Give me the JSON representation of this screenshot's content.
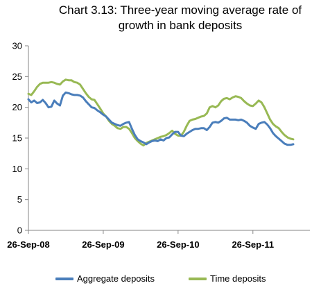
{
  "title": {
    "line1": "Chart  3.13:  Three-year moving average rate of",
    "line2": "growth in bank deposits"
  },
  "colors": {
    "aggregate": "#4a7ebb",
    "time": "#98b954",
    "axis": "#868686"
  },
  "chart_data": {
    "type": "line",
    "title": "Chart 3.13: Three-year moving average rate of growth in bank deposits",
    "xlabel": "",
    "ylabel": "",
    "ylim": [
      0,
      30
    ],
    "yticks": [
      "0",
      "5",
      "10",
      "15",
      "20",
      "25",
      "30"
    ],
    "xticks": [
      "26-Sep-08",
      "26-Sep-09",
      "26-Sep-10",
      "26-Sep-11"
    ],
    "grid": false,
    "legend": "bottom",
    "x_start": "2008-09-26",
    "x_end": "2012-06-30",
    "series": [
      {
        "name": "Aggregate deposits",
        "color": "#4a7ebb",
        "points": [
          [
            "2008-09-26",
            21.3
          ],
          [
            "2008-10-10",
            20.8
          ],
          [
            "2008-10-24",
            21.1
          ],
          [
            "2008-11-07",
            20.7
          ],
          [
            "2008-11-21",
            20.8
          ],
          [
            "2008-12-05",
            21.2
          ],
          [
            "2008-12-19",
            20.7
          ],
          [
            "2009-01-02",
            20.0
          ],
          [
            "2009-01-16",
            20.1
          ],
          [
            "2009-01-30",
            21.1
          ],
          [
            "2009-02-13",
            20.6
          ],
          [
            "2009-02-27",
            20.3
          ],
          [
            "2009-03-13",
            21.9
          ],
          [
            "2009-03-27",
            22.4
          ],
          [
            "2009-04-10",
            22.3
          ],
          [
            "2009-04-24",
            22.1
          ],
          [
            "2009-05-08",
            22.0
          ],
          [
            "2009-05-22",
            22.0
          ],
          [
            "2009-06-05",
            21.9
          ],
          [
            "2009-06-19",
            21.6
          ],
          [
            "2009-07-03",
            21.0
          ],
          [
            "2009-07-17",
            20.5
          ],
          [
            "2009-07-31",
            20.0
          ],
          [
            "2009-08-14",
            19.9
          ],
          [
            "2009-08-28",
            19.5
          ],
          [
            "2009-09-11",
            19.2
          ],
          [
            "2009-09-26",
            18.8
          ],
          [
            "2009-10-10",
            18.5
          ],
          [
            "2009-10-24",
            18.0
          ],
          [
            "2009-11-07",
            17.5
          ],
          [
            "2009-11-21",
            17.3
          ],
          [
            "2009-12-05",
            17.1
          ],
          [
            "2009-12-19",
            17.0
          ],
          [
            "2010-01-02",
            17.3
          ],
          [
            "2010-01-16",
            17.5
          ],
          [
            "2010-01-30",
            17.6
          ],
          [
            "2010-02-13",
            16.5
          ],
          [
            "2010-02-27",
            15.5
          ],
          [
            "2010-03-13",
            14.8
          ],
          [
            "2010-03-27",
            14.5
          ],
          [
            "2010-04-10",
            14.3
          ],
          [
            "2010-04-24",
            14.0
          ],
          [
            "2010-05-08",
            14.3
          ],
          [
            "2010-05-22",
            14.5
          ],
          [
            "2010-06-05",
            14.6
          ],
          [
            "2010-06-19",
            14.5
          ],
          [
            "2010-07-03",
            14.8
          ],
          [
            "2010-07-17",
            14.6
          ],
          [
            "2010-07-31",
            15.0
          ],
          [
            "2010-08-14",
            15.1
          ],
          [
            "2010-08-28",
            15.6
          ],
          [
            "2010-09-11",
            16.0
          ],
          [
            "2010-09-26",
            16.0
          ],
          [
            "2010-10-10",
            15.4
          ],
          [
            "2010-10-24",
            15.3
          ],
          [
            "2010-11-07",
            15.7
          ],
          [
            "2010-11-21",
            16.0
          ],
          [
            "2010-12-05",
            16.3
          ],
          [
            "2010-12-19",
            16.5
          ],
          [
            "2011-01-02",
            16.5
          ],
          [
            "2011-01-16",
            16.6
          ],
          [
            "2011-01-30",
            16.6
          ],
          [
            "2011-02-13",
            16.3
          ],
          [
            "2011-02-27",
            16.8
          ],
          [
            "2011-03-13",
            17.5
          ],
          [
            "2011-03-27",
            17.6
          ],
          [
            "2011-04-10",
            17.5
          ],
          [
            "2011-04-24",
            17.8
          ],
          [
            "2011-05-08",
            18.2
          ],
          [
            "2011-05-22",
            18.3
          ],
          [
            "2011-06-05",
            18.0
          ],
          [
            "2011-06-19",
            18.0
          ],
          [
            "2011-07-03",
            18.0
          ],
          [
            "2011-07-17",
            17.9
          ],
          [
            "2011-07-31",
            18.0
          ],
          [
            "2011-08-14",
            17.8
          ],
          [
            "2011-08-28",
            17.5
          ],
          [
            "2011-09-11",
            17.0
          ],
          [
            "2011-09-26",
            16.7
          ],
          [
            "2011-10-10",
            16.5
          ],
          [
            "2011-10-24",
            17.3
          ],
          [
            "2011-11-07",
            17.5
          ],
          [
            "2011-11-21",
            17.6
          ],
          [
            "2011-12-05",
            17.2
          ],
          [
            "2011-12-19",
            16.6
          ],
          [
            "2012-01-02",
            15.8
          ],
          [
            "2012-01-16",
            15.3
          ],
          [
            "2012-01-30",
            14.9
          ],
          [
            "2012-02-13",
            14.5
          ],
          [
            "2012-02-27",
            14.1
          ],
          [
            "2012-03-13",
            13.9
          ],
          [
            "2012-03-27",
            13.9
          ],
          [
            "2012-04-10",
            14.0
          ]
        ]
      },
      {
        "name": "Time deposits",
        "color": "#98b954",
        "points": [
          [
            "2008-09-26",
            22.2
          ],
          [
            "2008-10-10",
            22.0
          ],
          [
            "2008-10-24",
            22.6
          ],
          [
            "2008-11-07",
            23.3
          ],
          [
            "2008-11-21",
            23.8
          ],
          [
            "2008-12-05",
            24.0
          ],
          [
            "2008-12-19",
            24.0
          ],
          [
            "2009-01-02",
            24.0
          ],
          [
            "2009-01-16",
            24.1
          ],
          [
            "2009-01-30",
            24.0
          ],
          [
            "2009-02-13",
            23.8
          ],
          [
            "2009-02-27",
            23.7
          ],
          [
            "2009-03-13",
            24.2
          ],
          [
            "2009-03-27",
            24.5
          ],
          [
            "2009-04-10",
            24.4
          ],
          [
            "2009-04-24",
            24.4
          ],
          [
            "2009-05-08",
            24.1
          ],
          [
            "2009-05-22",
            24.0
          ],
          [
            "2009-06-05",
            23.7
          ],
          [
            "2009-06-19",
            23.0
          ],
          [
            "2009-07-03",
            22.3
          ],
          [
            "2009-07-17",
            21.7
          ],
          [
            "2009-07-31",
            21.3
          ],
          [
            "2009-08-14",
            21.2
          ],
          [
            "2009-08-28",
            20.5
          ],
          [
            "2009-09-11",
            19.8
          ],
          [
            "2009-09-26",
            19.0
          ],
          [
            "2009-10-10",
            18.5
          ],
          [
            "2009-10-24",
            17.8
          ],
          [
            "2009-11-07",
            17.3
          ],
          [
            "2009-11-21",
            17.0
          ],
          [
            "2009-12-05",
            16.6
          ],
          [
            "2009-12-19",
            16.5
          ],
          [
            "2010-01-02",
            16.8
          ],
          [
            "2010-01-16",
            16.8
          ],
          [
            "2010-01-30",
            16.5
          ],
          [
            "2010-02-13",
            15.8
          ],
          [
            "2010-02-27",
            15.0
          ],
          [
            "2010-03-13",
            14.5
          ],
          [
            "2010-03-27",
            14.1
          ],
          [
            "2010-04-10",
            13.8
          ],
          [
            "2010-04-24",
            14.2
          ],
          [
            "2010-05-08",
            14.4
          ],
          [
            "2010-05-22",
            14.6
          ],
          [
            "2010-06-05",
            14.8
          ],
          [
            "2010-06-19",
            15.0
          ],
          [
            "2010-07-03",
            15.2
          ],
          [
            "2010-07-17",
            15.3
          ],
          [
            "2010-07-31",
            15.5
          ],
          [
            "2010-08-14",
            15.8
          ],
          [
            "2010-08-28",
            16.2
          ],
          [
            "2010-09-11",
            15.7
          ],
          [
            "2010-09-26",
            15.4
          ],
          [
            "2010-10-10",
            15.4
          ],
          [
            "2010-10-24",
            16.0
          ],
          [
            "2010-11-07",
            17.0
          ],
          [
            "2010-11-21",
            17.8
          ],
          [
            "2010-12-05",
            18.0
          ],
          [
            "2010-12-19",
            18.1
          ],
          [
            "2011-01-02",
            18.3
          ],
          [
            "2011-01-16",
            18.5
          ],
          [
            "2011-01-30",
            18.6
          ],
          [
            "2011-02-13",
            19.0
          ],
          [
            "2011-02-27",
            20.0
          ],
          [
            "2011-03-13",
            20.2
          ],
          [
            "2011-03-27",
            20.0
          ],
          [
            "2011-04-10",
            20.3
          ],
          [
            "2011-04-24",
            21.0
          ],
          [
            "2011-05-08",
            21.4
          ],
          [
            "2011-05-22",
            21.5
          ],
          [
            "2011-06-05",
            21.3
          ],
          [
            "2011-06-19",
            21.6
          ],
          [
            "2011-07-03",
            21.8
          ],
          [
            "2011-07-17",
            21.7
          ],
          [
            "2011-07-31",
            21.5
          ],
          [
            "2011-08-14",
            21.0
          ],
          [
            "2011-08-28",
            20.6
          ],
          [
            "2011-09-11",
            20.3
          ],
          [
            "2011-09-26",
            20.2
          ],
          [
            "2011-10-10",
            20.6
          ],
          [
            "2011-10-24",
            21.1
          ],
          [
            "2011-11-07",
            20.8
          ],
          [
            "2011-11-21",
            20.0
          ],
          [
            "2011-12-05",
            19.0
          ],
          [
            "2011-12-19",
            18.0
          ],
          [
            "2012-01-02",
            17.3
          ],
          [
            "2012-01-16",
            16.9
          ],
          [
            "2012-01-30",
            16.6
          ],
          [
            "2012-02-13",
            16.0
          ],
          [
            "2012-02-27",
            15.5
          ],
          [
            "2012-03-13",
            15.1
          ],
          [
            "2012-03-27",
            14.9
          ],
          [
            "2012-04-10",
            14.8
          ]
        ]
      }
    ]
  }
}
